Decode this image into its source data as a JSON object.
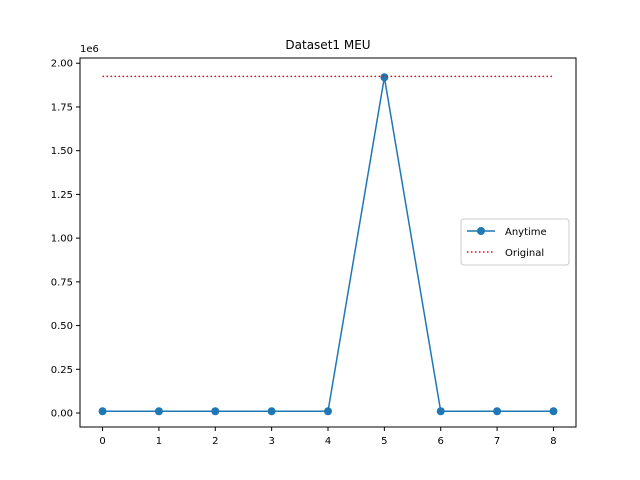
{
  "chart_data": {
    "type": "line",
    "title": "Dataset1 MEU",
    "xlabel": "",
    "ylabel": "",
    "offset_label": "1e6",
    "x": [
      0,
      1,
      2,
      3,
      4,
      5,
      6,
      7,
      8
    ],
    "xticks": [
      "0",
      "1",
      "2",
      "3",
      "4",
      "5",
      "6",
      "7",
      "8"
    ],
    "yticks": [
      {
        "value": 0.0,
        "label": "0.00"
      },
      {
        "value": 0.25,
        "label": "0.25"
      },
      {
        "value": 0.5,
        "label": "0.50"
      },
      {
        "value": 0.75,
        "label": "0.75"
      },
      {
        "value": 1.0,
        "label": "1.00"
      },
      {
        "value": 1.25,
        "label": "1.25"
      },
      {
        "value": 1.5,
        "label": "1.50"
      },
      {
        "value": 1.75,
        "label": "1.75"
      },
      {
        "value": 2.0,
        "label": "2.00"
      }
    ],
    "xlim": [
      -0.4,
      8.4
    ],
    "ylim": [
      -0.08,
      2.03
    ],
    "grid": false,
    "legend_position": "center-right",
    "series": [
      {
        "name": "Anytime",
        "style": "solid-marker",
        "color": "#1f77b4",
        "values": [
          0.01,
          0.01,
          0.01,
          0.01,
          0.01,
          1.92,
          0.01,
          0.01,
          0.01
        ]
      },
      {
        "name": "Original",
        "style": "dotted",
        "color": "#ff0000",
        "values": [
          1.925,
          1.925,
          1.925,
          1.925,
          1.925,
          1.925,
          1.925,
          1.925,
          1.925
        ]
      }
    ]
  }
}
